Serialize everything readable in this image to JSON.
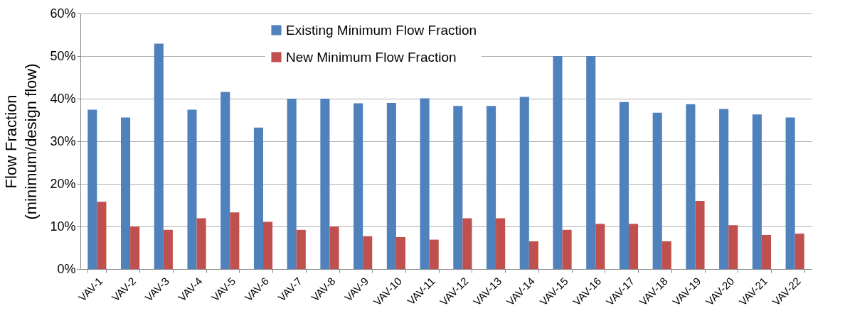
{
  "chart_data": {
    "type": "bar",
    "ylabel": "Flow Fraction\n(minimum/design  flow)",
    "categories": [
      "VAV-1",
      "VAV-2",
      "VAV-3",
      "VAV-4",
      "VAV-5",
      "VAV-6",
      "VAV-7",
      "VAV-8",
      "VAV-9",
      "VAV-10",
      "VAV-11",
      "VAV-12",
      "VAV-13",
      "VAV-14",
      "VAV-15",
      "VAV-16",
      "VAV-17",
      "VAV-18",
      "VAV-19",
      "VAV-20",
      "VAV-21",
      "VAV-22"
    ],
    "series": [
      {
        "name": "Existing Minimum Flow Fraction",
        "color": "#4f81bd",
        "values": [
          37.4,
          35.6,
          52.9,
          37.4,
          41.6,
          33.2,
          40,
          40,
          38.9,
          39,
          40.1,
          38.3,
          38.3,
          40.4,
          50,
          50,
          39.2,
          36.7,
          38.7,
          37.6,
          36.3,
          35.6
        ]
      },
      {
        "name": "New Minimum Flow Fraction",
        "color": "#c0504d",
        "values": [
          15.8,
          10,
          9.2,
          11.9,
          13.3,
          11.1,
          9.2,
          10,
          7.7,
          7.5,
          6.9,
          11.9,
          11.9,
          6.5,
          9.2,
          10.6,
          10.6,
          6.5,
          16,
          10.3,
          8,
          8.3
        ]
      }
    ],
    "ylim": [
      0,
      60
    ],
    "yticks": [
      {
        "value": 0,
        "label": "0%"
      },
      {
        "value": 10,
        "label": "10%"
      },
      {
        "value": 20,
        "label": "20%"
      },
      {
        "value": 30,
        "label": "30%"
      },
      {
        "value": 40,
        "label": "40%"
      },
      {
        "value": 50,
        "label": "50%"
      },
      {
        "value": 60,
        "label": "60%"
      }
    ],
    "grid": "y",
    "legend": "top"
  }
}
